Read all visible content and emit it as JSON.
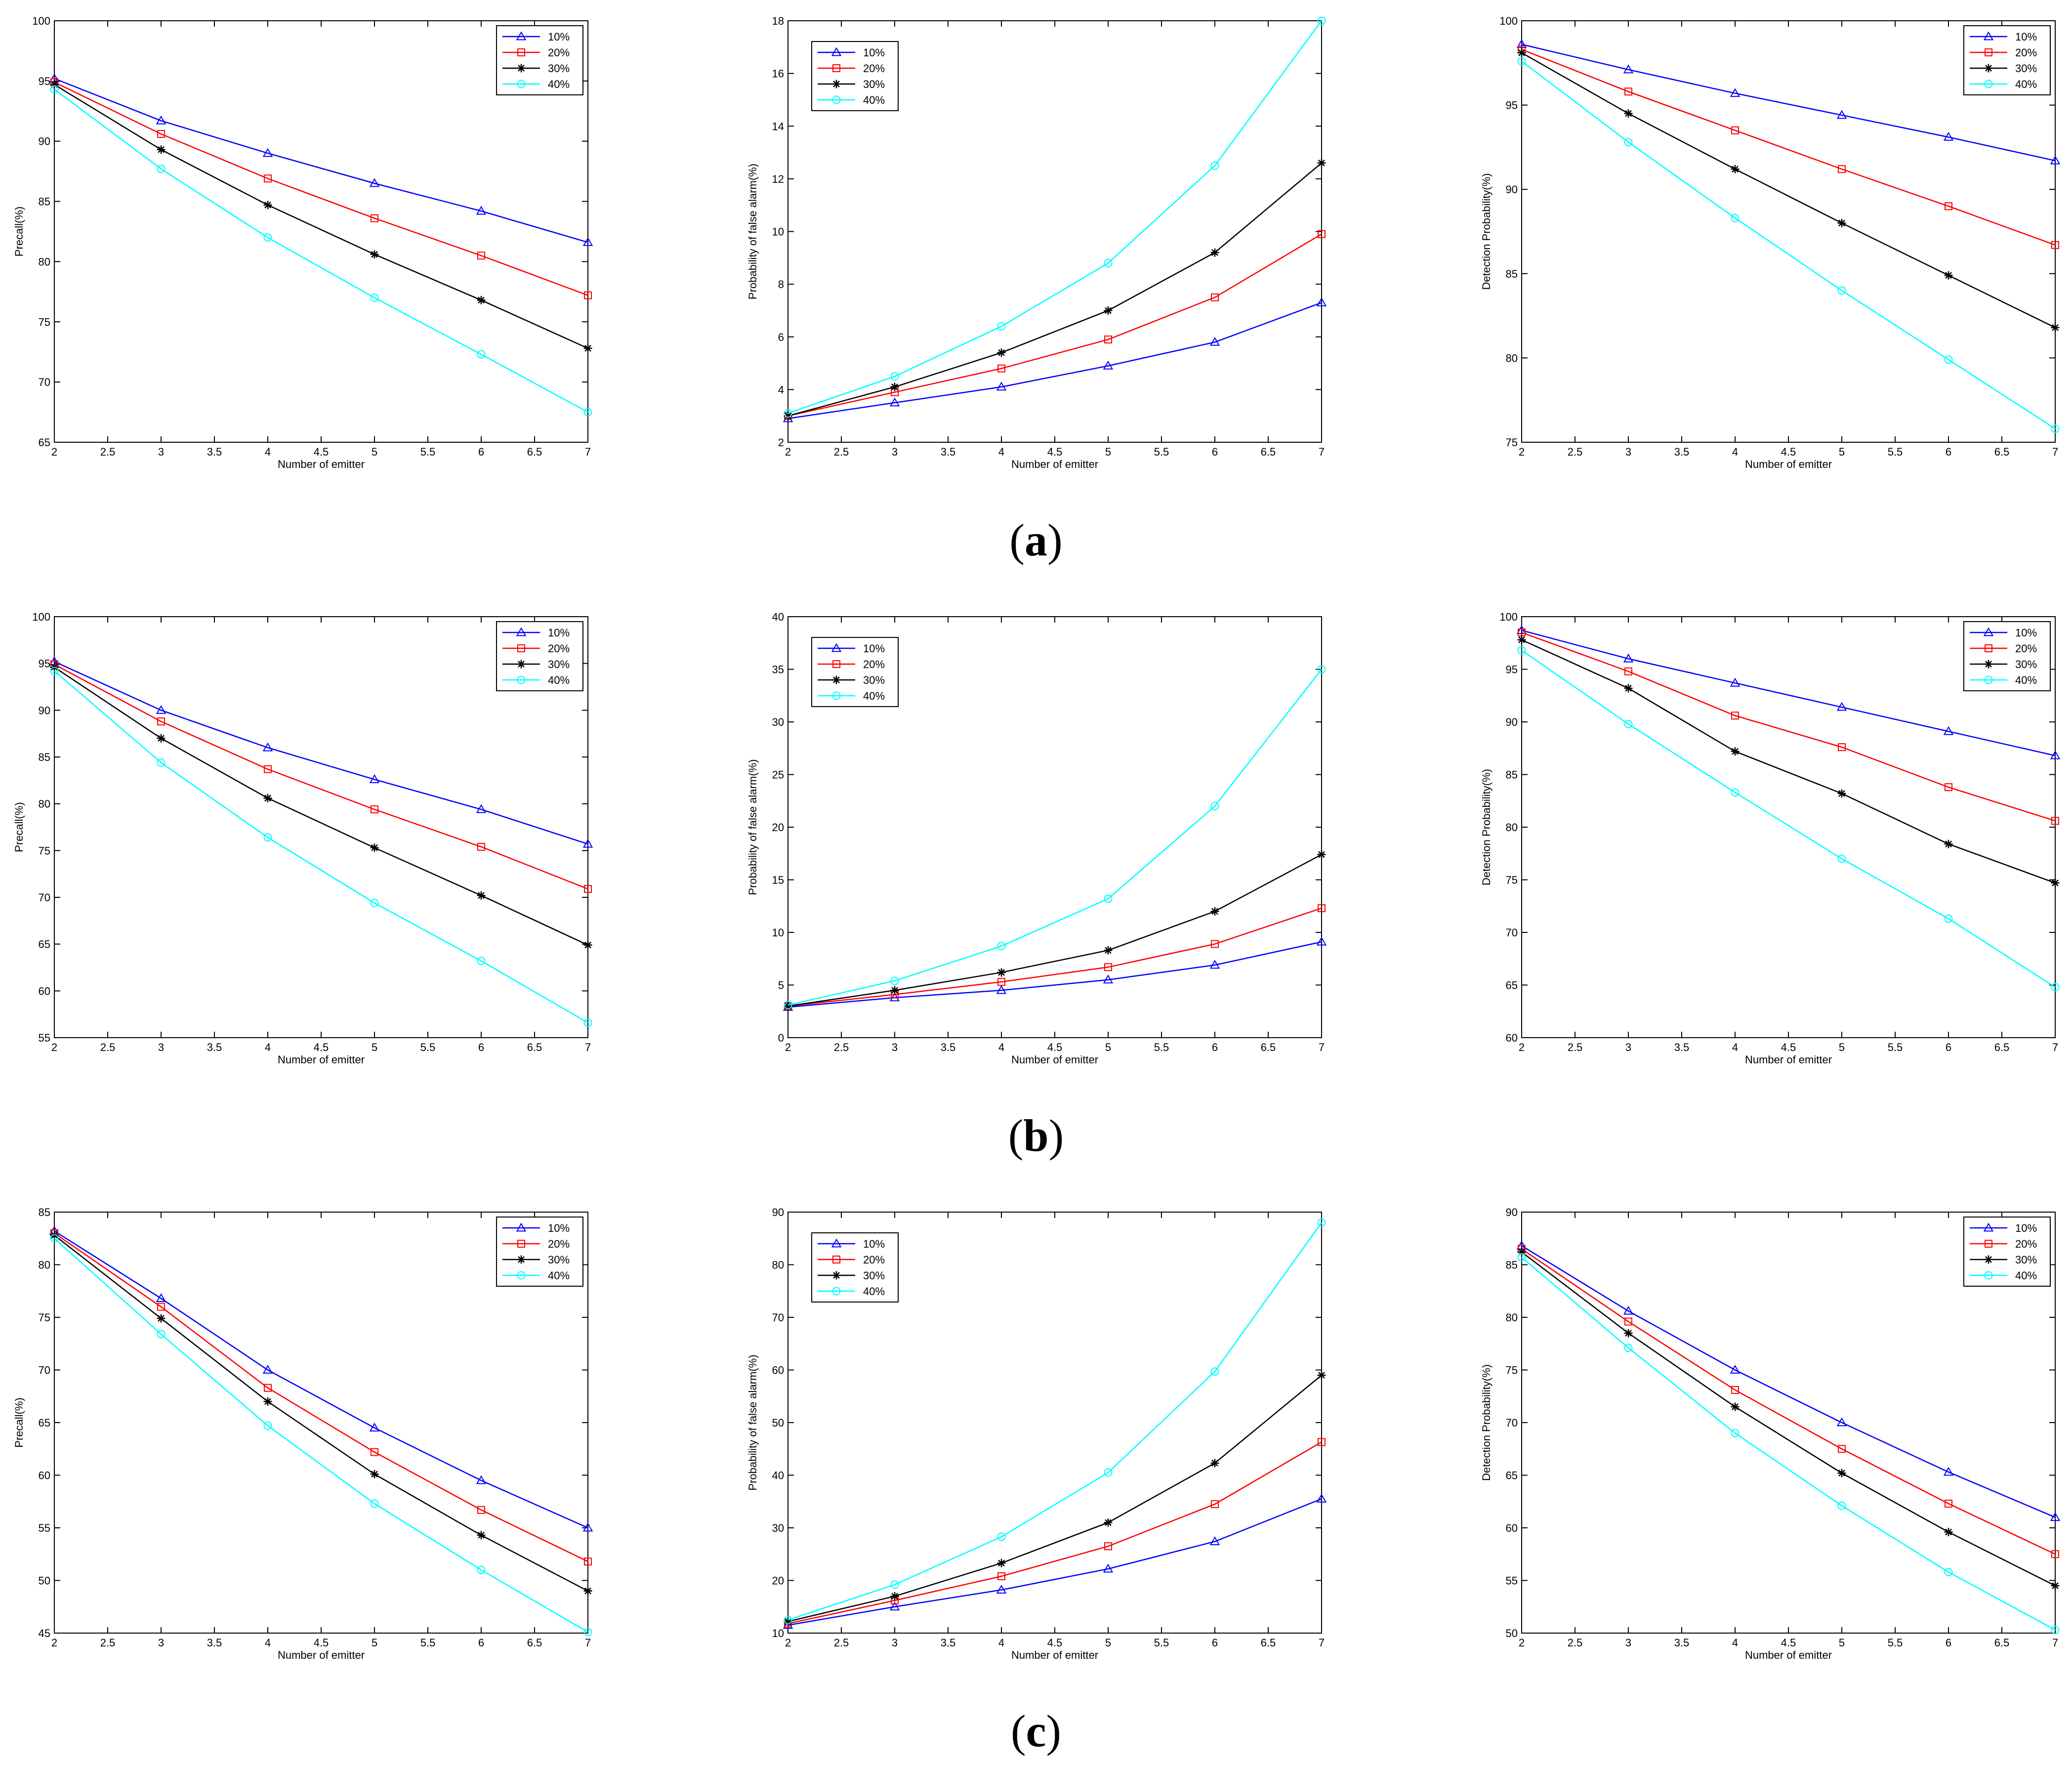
{
  "rows": [
    {
      "label_open": "(",
      "label_letter": "a",
      "label_close": ")",
      "charts": [
        {
          "type": "line",
          "title": "",
          "xlabel": "Number of emitter",
          "ylabel": "Precall(%)",
          "xlim": [
            2,
            7
          ],
          "ylim": [
            65,
            100
          ],
          "xticks": [
            "2",
            "2.5",
            "3",
            "3.5",
            "4",
            "4.5",
            "5",
            "5.5",
            "6",
            "6.5",
            "7"
          ],
          "yticks": [
            "65",
            "70",
            "75",
            "80",
            "85",
            "90",
            "95",
            "100"
          ],
          "legend_position": "top-right",
          "x": [
            2,
            3,
            4,
            5,
            6,
            7
          ],
          "series": [
            {
              "name": "10%",
              "color": "#0000ff",
              "marker": "triangle",
              "values": [
                95.2,
                91.7,
                89.0,
                86.5,
                84.2,
                81.6
              ]
            },
            {
              "name": "20%",
              "color": "#ff0000",
              "marker": "square",
              "values": [
                94.9,
                90.6,
                86.9,
                83.6,
                80.5,
                77.2
              ]
            },
            {
              "name": "30%",
              "color": "#000000",
              "marker": "star",
              "values": [
                94.7,
                89.3,
                84.7,
                80.6,
                76.8,
                72.8
              ]
            },
            {
              "name": "40%",
              "color": "#00ffff",
              "marker": "circle",
              "values": [
                94.3,
                87.7,
                82.0,
                77.0,
                72.3,
                67.5
              ]
            }
          ]
        },
        {
          "type": "line",
          "title": "",
          "xlabel": "Number of emitter",
          "ylabel": "Probability of false alarm(%)",
          "xlim": [
            2,
            7
          ],
          "ylim": [
            2,
            18
          ],
          "xticks": [
            "2",
            "2.5",
            "3",
            "3.5",
            "4",
            "4.5",
            "5",
            "5.5",
            "6",
            "6.5",
            "7"
          ],
          "yticks": [
            "2",
            "4",
            "6",
            "8",
            "10",
            "12",
            "14",
            "16",
            "18"
          ],
          "legend_position": "top-left",
          "x": [
            2,
            3,
            4,
            5,
            6,
            7
          ],
          "series": [
            {
              "name": "10%",
              "color": "#0000ff",
              "marker": "triangle",
              "values": [
                2.9,
                3.5,
                4.1,
                4.9,
                5.8,
                7.3
              ]
            },
            {
              "name": "20%",
              "color": "#ff0000",
              "marker": "square",
              "values": [
                3.0,
                3.9,
                4.8,
                5.9,
                7.5,
                9.9
              ]
            },
            {
              "name": "30%",
              "color": "#000000",
              "marker": "star",
              "values": [
                3.0,
                4.1,
                5.4,
                7.0,
                9.2,
                12.6
              ]
            },
            {
              "name": "40%",
              "color": "#00ffff",
              "marker": "circle",
              "values": [
                3.1,
                4.5,
                6.4,
                8.8,
                12.5,
                18.0
              ]
            }
          ]
        },
        {
          "type": "line",
          "title": "",
          "xlabel": "Number of emitter",
          "ylabel": "Detection Probability(%)",
          "xlim": [
            2,
            7
          ],
          "ylim": [
            75,
            100
          ],
          "xticks": [
            "2",
            "2.5",
            "3",
            "3.5",
            "4",
            "4.5",
            "5",
            "5.5",
            "6",
            "6.5",
            "7"
          ],
          "yticks": [
            "75",
            "80",
            "85",
            "90",
            "95",
            "100"
          ],
          "legend_position": "top-right",
          "x": [
            2,
            3,
            4,
            5,
            6,
            7
          ],
          "series": [
            {
              "name": "10%",
              "color": "#0000ff",
              "marker": "triangle",
              "values": [
                98.6,
                97.1,
                95.7,
                94.4,
                93.1,
                91.7
              ]
            },
            {
              "name": "20%",
              "color": "#ff0000",
              "marker": "square",
              "values": [
                98.3,
                95.8,
                93.5,
                91.2,
                89.0,
                86.7
              ]
            },
            {
              "name": "30%",
              "color": "#000000",
              "marker": "star",
              "values": [
                98.1,
                94.5,
                91.2,
                88.0,
                84.9,
                81.8
              ]
            },
            {
              "name": "40%",
              "color": "#00ffff",
              "marker": "circle",
              "values": [
                97.6,
                92.8,
                88.3,
                84.0,
                79.9,
                75.8
              ]
            }
          ]
        }
      ]
    },
    {
      "label_open": "(",
      "label_letter": "b",
      "label_close": ")",
      "charts": [
        {
          "type": "line",
          "title": "",
          "xlabel": "Number of emitter",
          "ylabel": "Precall(%)",
          "xlim": [
            2,
            7
          ],
          "ylim": [
            55,
            100
          ],
          "xticks": [
            "2",
            "2.5",
            "3",
            "3.5",
            "4",
            "4.5",
            "5",
            "5.5",
            "6",
            "6.5",
            "7"
          ],
          "yticks": [
            "55",
            "60",
            "65",
            "70",
            "75",
            "80",
            "85",
            "90",
            "95",
            "100"
          ],
          "legend_position": "top-right",
          "x": [
            2,
            3,
            4,
            5,
            6,
            7
          ],
          "series": [
            {
              "name": "10%",
              "color": "#0000ff",
              "marker": "triangle",
              "values": [
                95.2,
                90.0,
                86.0,
                82.6,
                79.4,
                75.7
              ]
            },
            {
              "name": "20%",
              "color": "#ff0000",
              "marker": "square",
              "values": [
                94.9,
                88.8,
                83.7,
                79.4,
                75.4,
                70.9
              ]
            },
            {
              "name": "30%",
              "color": "#000000",
              "marker": "star",
              "values": [
                94.6,
                87.0,
                80.6,
                75.3,
                70.2,
                64.9
              ]
            },
            {
              "name": "40%",
              "color": "#00ffff",
              "marker": "circle",
              "values": [
                94.2,
                84.4,
                76.4,
                69.4,
                63.2,
                56.6
              ]
            }
          ]
        },
        {
          "type": "line",
          "title": "",
          "xlabel": "Number of emitter",
          "ylabel": "Probability of false alarm(%)",
          "xlim": [
            2,
            7
          ],
          "ylim": [
            0,
            40
          ],
          "xticks": [
            "2",
            "2.5",
            "3",
            "3.5",
            "4",
            "4.5",
            "5",
            "5.5",
            "6",
            "6.5",
            "7"
          ],
          "yticks": [
            "0",
            "5",
            "10",
            "15",
            "20",
            "25",
            "30",
            "35",
            "40"
          ],
          "legend_position": "top-left",
          "x": [
            2,
            3,
            4,
            5,
            6,
            7
          ],
          "series": [
            {
              "name": "10%",
              "color": "#0000ff",
              "marker": "triangle",
              "values": [
                2.9,
                3.8,
                4.5,
                5.5,
                6.9,
                9.1
              ]
            },
            {
              "name": "20%",
              "color": "#ff0000",
              "marker": "square",
              "values": [
                3.0,
                4.1,
                5.3,
                6.7,
                8.9,
                12.3
              ]
            },
            {
              "name": "30%",
              "color": "#000000",
              "marker": "star",
              "values": [
                3.0,
                4.5,
                6.2,
                8.3,
                12.0,
                17.4
              ]
            },
            {
              "name": "40%",
              "color": "#00ffff",
              "marker": "circle",
              "values": [
                3.1,
                5.4,
                8.7,
                13.2,
                22.0,
                35.0
              ]
            }
          ]
        },
        {
          "type": "line",
          "title": "",
          "xlabel": "Number of emitter",
          "ylabel": "Detection Probability(%)",
          "xlim": [
            2,
            7
          ],
          "ylim": [
            60,
            100
          ],
          "xticks": [
            "2",
            "2.5",
            "3",
            "3.5",
            "4",
            "4.5",
            "5",
            "5.5",
            "6",
            "6.5",
            "7"
          ],
          "yticks": [
            "60",
            "65",
            "70",
            "75",
            "80",
            "85",
            "90",
            "95",
            "100"
          ],
          "legend_position": "top-right",
          "x": [
            2,
            3,
            4,
            5,
            6,
            7
          ],
          "series": [
            {
              "name": "10%",
              "color": "#0000ff",
              "marker": "triangle",
              "values": [
                98.7,
                96.0,
                93.7,
                91.4,
                89.1,
                86.8
              ]
            },
            {
              "name": "20%",
              "color": "#ff0000",
              "marker": "square",
              "values": [
                98.5,
                94.8,
                90.6,
                87.6,
                83.8,
                80.6
              ]
            },
            {
              "name": "30%",
              "color": "#000000",
              "marker": "star",
              "values": [
                97.8,
                93.2,
                87.2,
                83.2,
                78.4,
                74.7
              ]
            },
            {
              "name": "40%",
              "color": "#00ffff",
              "marker": "circle",
              "values": [
                96.8,
                89.8,
                83.3,
                77.0,
                71.3,
                64.8
              ]
            }
          ]
        }
      ]
    },
    {
      "label_open": "(",
      "label_letter": "c",
      "label_close": ")",
      "charts": [
        {
          "type": "line",
          "title": "",
          "xlabel": "Number of emitter",
          "ylabel": "Precall(%)",
          "xlim": [
            2,
            7
          ],
          "ylim": [
            45,
            85
          ],
          "xticks": [
            "2",
            "2.5",
            "3",
            "3.5",
            "4",
            "4.5",
            "5",
            "5.5",
            "6",
            "6.5",
            "7"
          ],
          "yticks": [
            "45",
            "50",
            "55",
            "60",
            "65",
            "70",
            "75",
            "80",
            "85"
          ],
          "legend_position": "top-right",
          "x": [
            2,
            3,
            4,
            5,
            6,
            7
          ],
          "series": [
            {
              "name": "10%",
              "color": "#0000ff",
              "marker": "triangle",
              "values": [
                83.2,
                76.8,
                70.0,
                64.5,
                59.5,
                55.0
              ]
            },
            {
              "name": "20%",
              "color": "#ff0000",
              "marker": "square",
              "values": [
                83.0,
                76.0,
                68.3,
                62.2,
                56.7,
                51.8
              ]
            },
            {
              "name": "30%",
              "color": "#000000",
              "marker": "star",
              "values": [
                82.8,
                74.9,
                67.0,
                60.1,
                54.3,
                49.0
              ]
            },
            {
              "name": "40%",
              "color": "#00ffff",
              "marker": "circle",
              "values": [
                82.5,
                73.4,
                64.7,
                57.3,
                51.0,
                45.1
              ]
            }
          ]
        },
        {
          "type": "line",
          "title": "",
          "xlabel": "Number of emitter",
          "ylabel": "Probability of false alarm(%)",
          "xlim": [
            2,
            7
          ],
          "ylim": [
            10,
            90
          ],
          "xticks": [
            "2",
            "2.5",
            "3",
            "3.5",
            "4",
            "4.5",
            "5",
            "5.5",
            "6",
            "6.5",
            "7"
          ],
          "yticks": [
            "10",
            "20",
            "30",
            "40",
            "50",
            "60",
            "70",
            "80",
            "90"
          ],
          "legend_position": "top-left",
          "x": [
            2,
            3,
            4,
            5,
            6,
            7
          ],
          "series": [
            {
              "name": "10%",
              "color": "#0000ff",
              "marker": "triangle",
              "values": [
                11.5,
                15.0,
                18.2,
                22.2,
                27.4,
                35.5
              ]
            },
            {
              "name": "20%",
              "color": "#ff0000",
              "marker": "square",
              "values": [
                11.8,
                16.2,
                20.8,
                26.5,
                34.5,
                46.3
              ]
            },
            {
              "name": "30%",
              "color": "#000000",
              "marker": "star",
              "values": [
                12.2,
                17.0,
                23.3,
                31.0,
                42.3,
                59.0
              ]
            },
            {
              "name": "40%",
              "color": "#00ffff",
              "marker": "circle",
              "values": [
                12.5,
                19.2,
                28.3,
                40.5,
                59.7,
                88.0
              ]
            }
          ]
        },
        {
          "type": "line",
          "title": "",
          "xlabel": "Number of emitter",
          "ylabel": "Detection Probability(%)",
          "xlim": [
            2,
            7
          ],
          "ylim": [
            50,
            90
          ],
          "xticks": [
            "2",
            "2.5",
            "3",
            "3.5",
            "4",
            "4.5",
            "5",
            "5.5",
            "6",
            "6.5",
            "7"
          ],
          "yticks": [
            "50",
            "55",
            "60",
            "65",
            "70",
            "75",
            "80",
            "85",
            "90"
          ],
          "legend_position": "top-right",
          "x": [
            2,
            3,
            4,
            5,
            6,
            7
          ],
          "series": [
            {
              "name": "10%",
              "color": "#0000ff",
              "marker": "triangle",
              "values": [
                86.8,
                80.6,
                75.0,
                70.0,
                65.3,
                61.0
              ]
            },
            {
              "name": "20%",
              "color": "#ff0000",
              "marker": "square",
              "values": [
                86.5,
                79.6,
                73.1,
                67.5,
                62.3,
                57.5
              ]
            },
            {
              "name": "30%",
              "color": "#000000",
              "marker": "star",
              "values": [
                86.2,
                78.5,
                71.5,
                65.2,
                59.6,
                54.5
              ]
            },
            {
              "name": "40%",
              "color": "#00ffff",
              "marker": "circle",
              "values": [
                85.7,
                77.1,
                69.0,
                62.1,
                55.8,
                50.3
              ]
            }
          ]
        }
      ]
    }
  ]
}
